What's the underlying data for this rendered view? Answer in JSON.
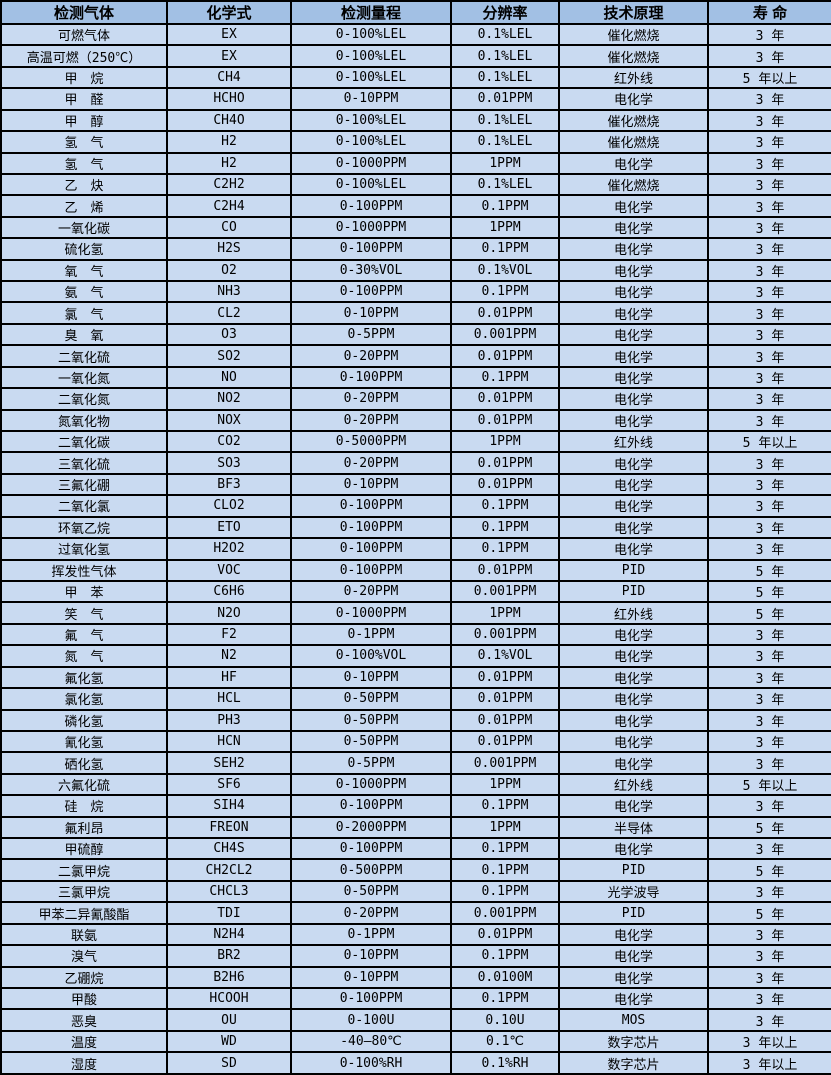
{
  "colors": {
    "header_bg": "#a2c0e4",
    "row_bg": "#c9daf1",
    "border": "#000000",
    "text": "#000000"
  },
  "table": {
    "headers": [
      "检测气体",
      "化学式",
      "检测量程",
      "分辨率",
      "技术原理",
      "寿 命"
    ],
    "rows": [
      [
        "可燃气体",
        "EX",
        "0-100%LEL",
        "0.1%LEL",
        "催化燃烧",
        "3 年"
      ],
      [
        "高温可燃（250℃）",
        "EX",
        "0-100%LEL",
        "0.1%LEL",
        "催化燃烧",
        "3 年"
      ],
      [
        "甲　烷",
        "CH4",
        "0-100%LEL",
        "0.1%LEL",
        "红外线",
        "5 年以上"
      ],
      [
        "甲　醛",
        "HCHO",
        "0-10PPM",
        "0.01PPM",
        "电化学",
        "3 年"
      ],
      [
        "甲　醇",
        "CH4O",
        "0-100%LEL",
        "0.1%LEL",
        "催化燃烧",
        "3 年"
      ],
      [
        "氢　气",
        "H2",
        "0-100%LEL",
        "0.1%LEL",
        "催化燃烧",
        "3 年"
      ],
      [
        "氢　气",
        "H2",
        "0-1000PPM",
        "1PPM",
        "电化学",
        "3 年"
      ],
      [
        "乙　炔",
        "C2H2",
        "0-100%LEL",
        "0.1%LEL",
        "催化燃烧",
        "3 年"
      ],
      [
        "乙　烯",
        "C2H4",
        "0-100PPM",
        "0.1PPM",
        "电化学",
        "3 年"
      ],
      [
        "一氧化碳",
        "CO",
        "0-1000PPM",
        "1PPM",
        "电化学",
        "3 年"
      ],
      [
        "硫化氢",
        "H2S",
        "0-100PPM",
        "0.1PPM",
        "电化学",
        "3 年"
      ],
      [
        "氧　气",
        "O2",
        "0-30%VOL",
        "0.1%VOL",
        "电化学",
        "3 年"
      ],
      [
        "氨　气",
        "NH3",
        "0-100PPM",
        "0.1PPM",
        "电化学",
        "3 年"
      ],
      [
        "氯　气",
        "CL2",
        "0-10PPM",
        "0.01PPM",
        "电化学",
        "3 年"
      ],
      [
        "臭　氧",
        "O3",
        "0-5PPM",
        "0.001PPM",
        "电化学",
        "3 年"
      ],
      [
        "二氧化硫",
        "SO2",
        "0-20PPM",
        "0.01PPM",
        "电化学",
        "3 年"
      ],
      [
        "一氧化氮",
        "NO",
        "0-100PPM",
        "0.1PPM",
        "电化学",
        "3 年"
      ],
      [
        "二氧化氮",
        "NO2",
        "0-20PPM",
        "0.01PPM",
        "电化学",
        "3 年"
      ],
      [
        "氮氧化物",
        "NOX",
        "0-20PPM",
        "0.01PPM",
        "电化学",
        "3 年"
      ],
      [
        "二氧化碳",
        "CO2",
        "0-5000PPM",
        "1PPM",
        "红外线",
        "5 年以上"
      ],
      [
        "三氧化硫",
        "SO3",
        "0-20PPM",
        "0.01PPM",
        "电化学",
        "3 年"
      ],
      [
        "三氟化硼",
        "BF3",
        "0-10PPM",
        "0.01PPM",
        "电化学",
        "3 年"
      ],
      [
        "二氧化氯",
        "CLO2",
        "0-100PPM",
        "0.1PPM",
        "电化学",
        "3 年"
      ],
      [
        "环氧乙烷",
        "ETO",
        "0-100PPM",
        "0.1PPM",
        "电化学",
        "3 年"
      ],
      [
        "过氧化氢",
        "H2O2",
        "0-100PPM",
        "0.1PPM",
        "电化学",
        "3 年"
      ],
      [
        "挥发性气体",
        "VOC",
        "0-100PPM",
        "0.01PPM",
        "PID",
        "5 年"
      ],
      [
        "甲　苯",
        "C6H6",
        "0-20PPM",
        "0.001PPM",
        "PID",
        "5 年"
      ],
      [
        "笑　气",
        "N2O",
        "0-1000PPM",
        "1PPM",
        "红外线",
        "5 年"
      ],
      [
        "氟　气",
        "F2",
        "0-1PPM",
        "0.001PPM",
        "电化学",
        "3 年"
      ],
      [
        "氮　气",
        "N2",
        "0-100%VOL",
        "0.1%VOL",
        "电化学",
        "3 年"
      ],
      [
        "氟化氢",
        "HF",
        "0-10PPM",
        "0.01PPM",
        "电化学",
        "3 年"
      ],
      [
        "氯化氢",
        "HCL",
        "0-50PPM",
        "0.01PPM",
        "电化学",
        "3 年"
      ],
      [
        "磷化氢",
        "PH3",
        "0-50PPM",
        "0.01PPM",
        "电化学",
        "3 年"
      ],
      [
        "氰化氢",
        "HCN",
        "0-50PPM",
        "0.01PPM",
        "电化学",
        "3 年"
      ],
      [
        "硒化氢",
        "SEH2",
        "0-5PPM",
        "0.001PPM",
        "电化学",
        "3 年"
      ],
      [
        "六氟化硫",
        "SF6",
        "0-1000PPM",
        "1PPM",
        "红外线",
        "5 年以上"
      ],
      [
        "硅　烷",
        "SIH4",
        "0-100PPM",
        "0.1PPM",
        "电化学",
        "3 年"
      ],
      [
        "氟利昂",
        "FREON",
        "0-2000PPM",
        "1PPM",
        "半导体",
        "5 年"
      ],
      [
        "甲硫醇",
        "CH4S",
        "0-100PPM",
        "0.1PPM",
        "电化学",
        "3 年"
      ],
      [
        "二氯甲烷",
        "CH2CL2",
        "0-500PPM",
        "0.1PPM",
        "PID",
        "5 年"
      ],
      [
        "三氯甲烷",
        "CHCL3",
        "0-50PPM",
        "0.1PPM",
        "光学波导",
        "3 年"
      ],
      [
        "甲苯二异氰酸酯",
        "TDI",
        "0-20PPM",
        "0.001PPM",
        "PID",
        "5 年"
      ],
      [
        "联氨",
        "N2H4",
        "0-1PPM",
        "0.01PPM",
        "电化学",
        "3 年"
      ],
      [
        "溴气",
        "BR2",
        "0-10PPM",
        "0.1PPM",
        "电化学",
        "3 年"
      ],
      [
        "乙硼烷",
        "B2H6",
        "0-10PPM",
        "0.0100M",
        "电化学",
        "3 年"
      ],
      [
        "甲酸",
        "HCOOH",
        "0-100PPM",
        "0.1PPM",
        "电化学",
        "3 年"
      ],
      [
        "恶臭",
        "OU",
        "0-100U",
        "0.10U",
        "MOS",
        "3 年"
      ],
      [
        "温度",
        "WD",
        "-40—80℃",
        "0.1℃",
        "数字芯片",
        "3 年以上"
      ],
      [
        "湿度",
        "SD",
        "0-100%RH",
        "0.1%RH",
        "数字芯片",
        "3 年以上"
      ]
    ]
  }
}
